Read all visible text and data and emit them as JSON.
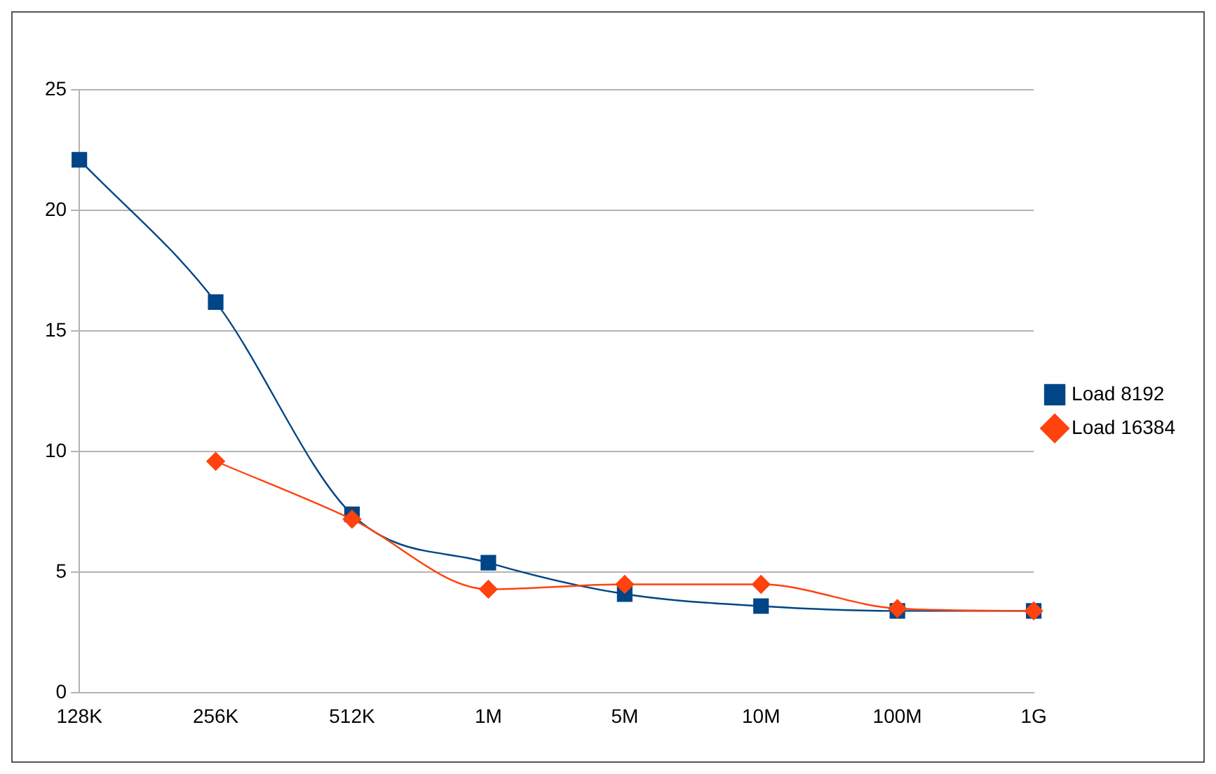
{
  "chart_data": {
    "type": "line",
    "categories": [
      "128K",
      "256K",
      "512K",
      "1M",
      "5M",
      "10M",
      "100M",
      "1G"
    ],
    "series": [
      {
        "name": "Load 8192",
        "color": "#004586",
        "marker": "square",
        "values": [
          22.1,
          16.2,
          7.4,
          5.4,
          4.1,
          3.6,
          3.4,
          3.4
        ]
      },
      {
        "name": "Load 16384",
        "color": "#ff420e",
        "marker": "diamond",
        "values": [
          null,
          9.6,
          7.2,
          4.3,
          4.5,
          4.5,
          3.5,
          3.4
        ]
      }
    ],
    "ylim": [
      0,
      25
    ],
    "yticks": [
      0,
      5,
      10,
      15,
      20,
      25
    ],
    "grid": "y",
    "legend": "right",
    "line_style": "solid"
  }
}
